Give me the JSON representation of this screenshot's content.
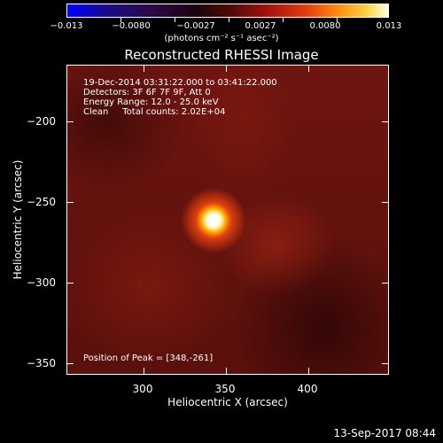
{
  "colorbar": {
    "labels": [
      "−0.013",
      "−0.0080",
      "−0.0027",
      "0.0027",
      "0.0080",
      "0.013"
    ],
    "units": "(photons cm⁻² s⁻¹ asec⁻²)"
  },
  "title": "Reconstructed RHESSI Image",
  "info": {
    "line1": "19-Dec-2014 03:31:22.000 to 03:41:22.000",
    "line2": "Detectors: 3F 6F 7F 9F, Att 0",
    "line3": "Energy Range: 12.0 - 25.0 keV",
    "line4": "Clean     Total counts: 2.02E+04",
    "peak": "Position of Peak = [348,-261]"
  },
  "axes": {
    "xlabel": "Heliocentric X (arcsec)",
    "ylabel": "Heliocentric Y (arcsec)",
    "xticks": [
      "300",
      "350",
      "400"
    ],
    "yticks": [
      "−200",
      "−250",
      "−300",
      "−350"
    ]
  },
  "timestamp": "13-Sep-2017 08:44"
}
